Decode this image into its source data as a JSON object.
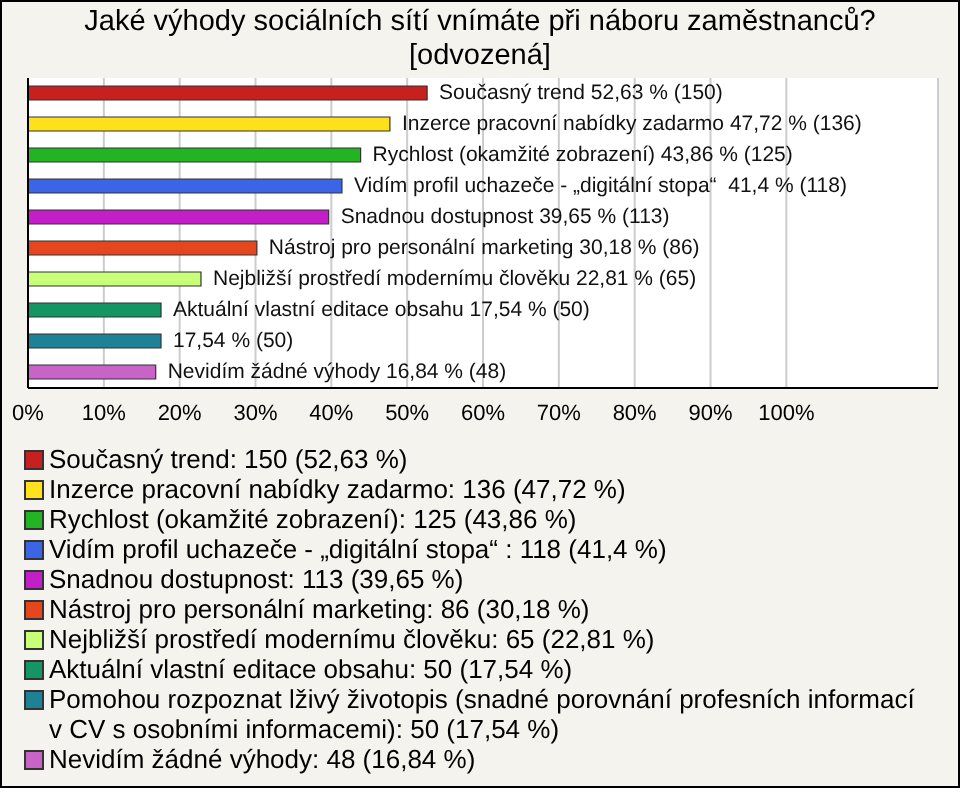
{
  "chart_data": {
    "type": "bar",
    "orientation": "horizontal",
    "stacked": true,
    "title": "Jaké výhody sociálních sítí vnímáte při náboru zaměstnanců? [odvozená]",
    "categories": [
      null,
      null,
      null,
      null,
      null,
      null,
      null,
      null,
      null,
      null
    ],
    "series": [
      {
        "name": "Současný trend: 150 (52,63 %)",
        "color": "#c8201e",
        "values": [
          52.63,
          null,
          null,
          null,
          null,
          null,
          null,
          null,
          null,
          null
        ],
        "value_labels": [
          "Současný trend 52,63 % (150)",
          null,
          null,
          null,
          null,
          null,
          null,
          null,
          null,
          null
        ]
      },
      {
        "name": "Inzerce pracovní nabídky zadarmo: 136 (47,72 %)",
        "color": "#ffe01c",
        "values": [
          null,
          47.72,
          null,
          null,
          null,
          null,
          null,
          null,
          null,
          null
        ],
        "value_labels": [
          null,
          "Inzerce pracovní nabídky zadarmo 47,72 % (136)",
          null,
          null,
          null,
          null,
          null,
          null,
          null,
          null
        ]
      },
      {
        "name": "Rychlost (okamžité zobrazení): 125 (43,86 %)",
        "color": "#22b422",
        "values": [
          null,
          null,
          43.86,
          null,
          null,
          null,
          null,
          null,
          null,
          null
        ],
        "value_labels": [
          null,
          null,
          "Rychlost (okamžité zobrazení) 43,86 % (125)",
          null,
          null,
          null,
          null,
          null,
          null,
          null
        ]
      },
      {
        "name": "Vidím profil uchazeče - „digitální stopa“ : 118 (41,4 %)",
        "color": "#3c64e6",
        "values": [
          null,
          null,
          null,
          41.4,
          null,
          null,
          null,
          null,
          null,
          null
        ],
        "value_labels": [
          null,
          null,
          null,
          "Vidím profil uchazeče - „digitální stopa“  41,4 % (118)",
          null,
          null,
          null,
          null,
          null,
          null
        ]
      },
      {
        "name": "Snadnou dostupnost: 113 (39,65 %)",
        "color": "#c31ec8",
        "values": [
          null,
          null,
          null,
          null,
          39.65,
          null,
          null,
          null,
          null,
          null
        ],
        "value_labels": [
          null,
          null,
          null,
          null,
          "Snadnou dostupnost 39,65 % (113)",
          null,
          null,
          null,
          null,
          null
        ]
      },
      {
        "name": "Nástroj pro personální marketing: 86 (30,18 %)",
        "color": "#e6461e",
        "values": [
          null,
          null,
          null,
          null,
          null,
          30.18,
          null,
          null,
          null,
          null
        ],
        "value_labels": [
          null,
          null,
          null,
          null,
          null,
          "Nástroj pro personální marketing 30,18 % (86)",
          null,
          null,
          null,
          null
        ]
      },
      {
        "name": "Nejbližší prostředí modernímu člověku: 65 (22,81 %)",
        "color": "#c8ff78",
        "values": [
          null,
          null,
          null,
          null,
          null,
          null,
          22.81,
          null,
          null,
          null
        ],
        "value_labels": [
          null,
          null,
          null,
          null,
          null,
          null,
          "Nejbližší prostředí modernímu člověku 22,81 % (65)",
          null,
          null,
          null
        ]
      },
      {
        "name": "Aktuální vlastní editace obsahu: 50 (17,54 %)",
        "color": "#149664",
        "values": [
          null,
          null,
          null,
          null,
          null,
          null,
          null,
          17.54,
          null,
          null
        ],
        "value_labels": [
          null,
          null,
          null,
          null,
          null,
          null,
          null,
          "Aktuální vlastní editace obsahu 17,54 % (50)",
          null,
          null
        ]
      },
      {
        "name": "Pomohou rozpoznat lživý životopis (snadné porovnání profesních informací v CV s osobními informacemi): 50 (17,54 %)",
        "color": "#1e8296",
        "values": [
          null,
          null,
          null,
          null,
          null,
          null,
          null,
          null,
          17.54,
          null
        ],
        "value_labels": [
          null,
          null,
          null,
          null,
          null,
          null,
          null,
          null,
          "17,54 % (50)",
          null
        ]
      },
      {
        "name": "Nevidím žádné výhody: 48 (16,84 %)",
        "color": "#c864c8",
        "values": [
          null,
          null,
          null,
          null,
          null,
          null,
          null,
          null,
          null,
          16.84
        ],
        "value_labels": [
          null,
          null,
          null,
          null,
          null,
          null,
          null,
          null,
          null,
          "Nevidím žádné výhody 16,84 % (48)"
        ]
      }
    ],
    "xlim": [
      0,
      120
    ],
    "xticks": [
      {
        "value": 0,
        "label": "0%"
      },
      {
        "value": 10,
        "label": "10%"
      },
      {
        "value": 20,
        "label": "20%"
      },
      {
        "value": 30,
        "label": "30%"
      },
      {
        "value": 40,
        "label": "40%"
      },
      {
        "value": 50,
        "label": "50%"
      },
      {
        "value": 60,
        "label": "60%"
      },
      {
        "value": 70,
        "label": "70%"
      },
      {
        "value": 80,
        "label": "80%"
      },
      {
        "value": 90,
        "label": "90%"
      },
      {
        "value": 100,
        "label": "100%"
      }
    ],
    "grid": "x",
    "legend": "bottom"
  }
}
